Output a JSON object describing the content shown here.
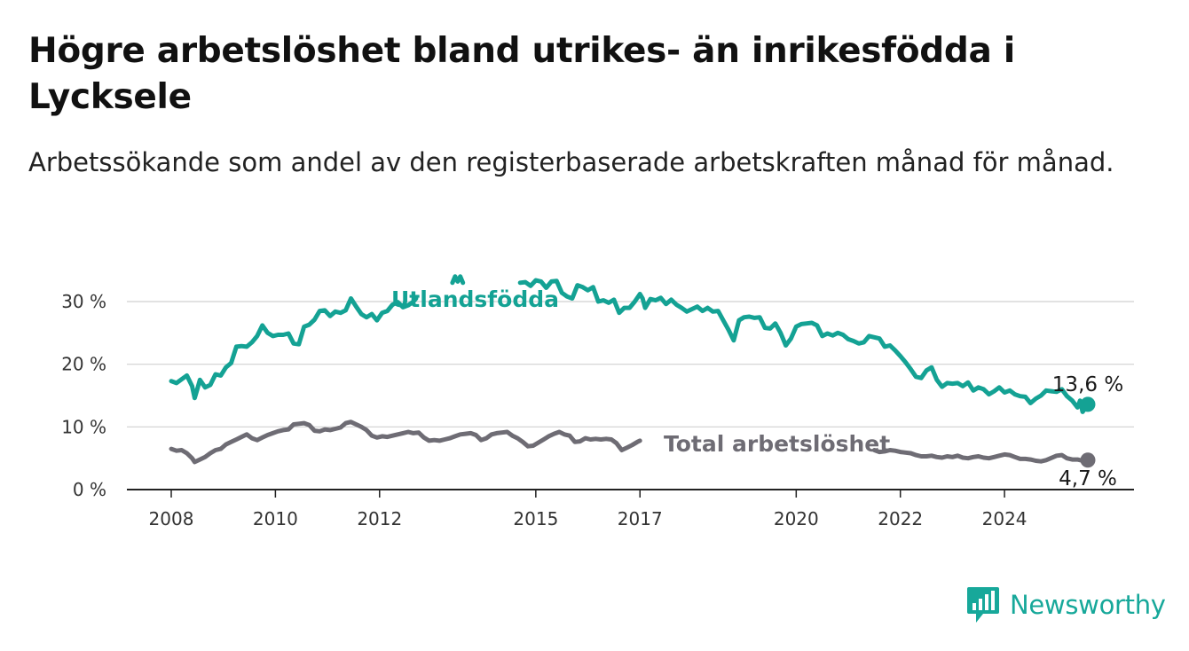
{
  "title": "Högre arbetslöshet bland utrikes- än inrikesfödda i Lycksele",
  "subtitle": "Arbetssökande som andel av den registerbaserade arbetskraften månad för månad.",
  "brand": {
    "name": "Newsworthy",
    "icon": "bar-chart-logo-icon",
    "color": "#17a89a"
  },
  "colors": {
    "utlandsfodda": "#14a294",
    "total": "#6e6c74",
    "grid": "#d0d0d0",
    "axis": "#222222"
  },
  "chart_data": {
    "type": "line",
    "x_unit": "year",
    "xlim": [
      2008,
      2025.6
    ],
    "ylim": [
      0,
      30
    ],
    "x_ticks": [
      2008,
      2010,
      2012,
      2015,
      2017,
      2020,
      2022,
      2024
    ],
    "y_ticks": [
      0,
      10,
      20,
      30
    ],
    "y_tick_labels": [
      "0 %",
      "10 %",
      "20 %",
      "30 %"
    ],
    "grid": "horizontal",
    "series": [
      {
        "name": "Utlandsfödda",
        "end_label": "13,6 %",
        "end_value": 13.6,
        "points": [
          [
            2008.0,
            17.3
          ],
          [
            2008.1,
            17.0
          ],
          [
            2008.2,
            17.6
          ],
          [
            2008.3,
            18.2
          ],
          [
            2008.4,
            16.5
          ],
          [
            2008.45,
            14.6
          ],
          [
            2008.5,
            16.0
          ],
          [
            2008.55,
            17.5
          ],
          [
            2008.65,
            16.3
          ],
          [
            2008.75,
            16.7
          ],
          [
            2008.85,
            18.4
          ],
          [
            2008.95,
            18.2
          ],
          [
            2009.05,
            19.5
          ],
          [
            2009.15,
            20.2
          ],
          [
            2009.25,
            22.8
          ],
          [
            2009.35,
            22.9
          ],
          [
            2009.45,
            22.8
          ],
          [
            2009.55,
            23.5
          ],
          [
            2009.65,
            24.5
          ],
          [
            2009.75,
            26.2
          ],
          [
            2009.85,
            25.0
          ],
          [
            2009.95,
            24.5
          ],
          [
            2010.05,
            24.7
          ],
          [
            2010.15,
            24.7
          ],
          [
            2010.25,
            24.9
          ],
          [
            2010.35,
            23.3
          ],
          [
            2010.45,
            23.2
          ],
          [
            2010.55,
            26.0
          ],
          [
            2010.65,
            26.3
          ],
          [
            2010.75,
            27.1
          ],
          [
            2010.85,
            28.5
          ],
          [
            2010.95,
            28.6
          ],
          [
            2011.05,
            27.7
          ],
          [
            2011.15,
            28.4
          ],
          [
            2011.25,
            28.2
          ],
          [
            2011.35,
            28.6
          ],
          [
            2011.45,
            30.5
          ],
          [
            2011.55,
            29.2
          ],
          [
            2011.65,
            28.0
          ],
          [
            2011.75,
            27.5
          ],
          [
            2011.85,
            28.0
          ],
          [
            2011.95,
            27.0
          ],
          [
            2012.05,
            28.2
          ],
          [
            2012.15,
            28.5
          ],
          [
            2012.25,
            29.5
          ],
          [
            2012.35,
            29.9
          ],
          [
            2012.45,
            29.1
          ],
          [
            2012.55,
            29.4
          ],
          [
            2012.65,
            30.0
          ],
          [
            2012.7,
            30.5
          ]
        ],
        "points_part2": [
          [
            2013.4,
            33.0
          ],
          [
            2013.45,
            34.0
          ],
          [
            2013.5,
            33.2
          ],
          [
            2013.55,
            34.0
          ],
          [
            2013.6,
            33.0
          ]
        ],
        "points_part3": [
          [
            2014.7,
            33.0
          ],
          [
            2014.8,
            33.1
          ],
          [
            2014.9,
            32.5
          ],
          [
            2015.0,
            33.4
          ],
          [
            2015.1,
            33.2
          ],
          [
            2015.2,
            32.2
          ],
          [
            2015.3,
            33.2
          ],
          [
            2015.4,
            33.3
          ],
          [
            2015.5,
            31.4
          ],
          [
            2015.6,
            30.8
          ],
          [
            2015.7,
            30.5
          ],
          [
            2015.8,
            32.6
          ],
          [
            2015.9,
            32.3
          ],
          [
            2016.0,
            31.8
          ],
          [
            2016.1,
            32.3
          ],
          [
            2016.2,
            30.0
          ],
          [
            2016.3,
            30.2
          ],
          [
            2016.4,
            29.8
          ],
          [
            2016.5,
            30.3
          ],
          [
            2016.6,
            28.2
          ],
          [
            2016.7,
            29.0
          ],
          [
            2016.8,
            29.0
          ],
          [
            2016.9,
            30.0
          ],
          [
            2017.0,
            31.2
          ],
          [
            2017.05,
            30.5
          ],
          [
            2017.1,
            29.0
          ],
          [
            2017.2,
            30.4
          ],
          [
            2017.3,
            30.2
          ],
          [
            2017.4,
            30.6
          ],
          [
            2017.5,
            29.6
          ],
          [
            2017.6,
            30.3
          ],
          [
            2017.7,
            29.5
          ],
          [
            2017.8,
            29.0
          ],
          [
            2017.9,
            28.4
          ],
          [
            2018.0,
            28.8
          ],
          [
            2018.1,
            29.2
          ],
          [
            2018.2,
            28.5
          ],
          [
            2018.3,
            29.0
          ],
          [
            2018.4,
            28.4
          ],
          [
            2018.5,
            28.5
          ],
          [
            2018.6,
            27.0
          ],
          [
            2018.7,
            25.5
          ],
          [
            2018.8,
            23.8
          ],
          [
            2018.9,
            27.0
          ],
          [
            2019.0,
            27.5
          ],
          [
            2019.1,
            27.6
          ],
          [
            2019.2,
            27.4
          ],
          [
            2019.3,
            27.5
          ],
          [
            2019.4,
            25.8
          ],
          [
            2019.5,
            25.7
          ],
          [
            2019.6,
            26.5
          ],
          [
            2019.7,
            25.0
          ],
          [
            2019.8,
            23.0
          ],
          [
            2019.9,
            24.1
          ],
          [
            2020.0,
            26.0
          ],
          [
            2020.1,
            26.4
          ],
          [
            2020.2,
            26.5
          ],
          [
            2020.3,
            26.6
          ],
          [
            2020.4,
            26.2
          ],
          [
            2020.5,
            24.5
          ],
          [
            2020.6,
            24.9
          ],
          [
            2020.7,
            24.6
          ],
          [
            2020.8,
            25.0
          ],
          [
            2020.9,
            24.7
          ],
          [
            2021.0,
            24.0
          ],
          [
            2021.1,
            23.7
          ],
          [
            2021.2,
            23.3
          ],
          [
            2021.3,
            23.5
          ],
          [
            2021.4,
            24.5
          ],
          [
            2021.5,
            24.3
          ],
          [
            2021.6,
            24.1
          ],
          [
            2021.7,
            22.8
          ],
          [
            2021.8,
            23.0
          ],
          [
            2021.9,
            22.2
          ],
          [
            2022.0,
            21.3
          ],
          [
            2022.1,
            20.3
          ],
          [
            2022.2,
            19.2
          ],
          [
            2022.3,
            18.0
          ],
          [
            2022.4,
            17.8
          ],
          [
            2022.5,
            19.0
          ],
          [
            2022.6,
            19.5
          ],
          [
            2022.7,
            17.5
          ],
          [
            2022.8,
            16.4
          ],
          [
            2022.9,
            17.0
          ],
          [
            2023.0,
            16.9
          ],
          [
            2023.1,
            17.0
          ],
          [
            2023.2,
            16.5
          ],
          [
            2023.3,
            17.1
          ],
          [
            2023.4,
            15.8
          ],
          [
            2023.5,
            16.3
          ],
          [
            2023.6,
            16.0
          ],
          [
            2023.7,
            15.2
          ],
          [
            2023.8,
            15.7
          ],
          [
            2023.9,
            16.3
          ],
          [
            2024.0,
            15.5
          ],
          [
            2024.1,
            15.8
          ],
          [
            2024.2,
            15.2
          ],
          [
            2024.3,
            14.9
          ],
          [
            2024.4,
            14.8
          ],
          [
            2024.5,
            13.8
          ],
          [
            2024.6,
            14.5
          ],
          [
            2024.7,
            15.0
          ],
          [
            2024.8,
            15.8
          ],
          [
            2024.9,
            15.7
          ],
          [
            2025.0,
            15.6
          ],
          [
            2025.1,
            16.0
          ],
          [
            2025.2,
            14.9
          ],
          [
            2025.3,
            14.2
          ],
          [
            2025.4,
            13.1
          ],
          [
            2025.45,
            14.2
          ],
          [
            2025.5,
            12.4
          ],
          [
            2025.6,
            13.6
          ]
        ]
      },
      {
        "name": "Total arbetslöshet",
        "end_label": "4,7 %",
        "end_value": 4.7,
        "points": [
          [
            2008.0,
            6.5
          ],
          [
            2008.1,
            6.2
          ],
          [
            2008.2,
            6.3
          ],
          [
            2008.3,
            5.8
          ],
          [
            2008.4,
            5.0
          ],
          [
            2008.45,
            4.4
          ],
          [
            2008.55,
            4.8
          ],
          [
            2008.65,
            5.2
          ],
          [
            2008.75,
            5.8
          ],
          [
            2008.85,
            6.3
          ],
          [
            2008.95,
            6.5
          ],
          [
            2009.05,
            7.2
          ],
          [
            2009.15,
            7.6
          ],
          [
            2009.25,
            8.0
          ],
          [
            2009.35,
            8.4
          ],
          [
            2009.45,
            8.8
          ],
          [
            2009.55,
            8.2
          ],
          [
            2009.65,
            7.9
          ],
          [
            2009.75,
            8.3
          ],
          [
            2009.85,
            8.7
          ],
          [
            2009.95,
            9.0
          ],
          [
            2010.05,
            9.3
          ],
          [
            2010.15,
            9.5
          ],
          [
            2010.25,
            9.6
          ],
          [
            2010.35,
            10.4
          ],
          [
            2010.45,
            10.5
          ],
          [
            2010.55,
            10.6
          ],
          [
            2010.65,
            10.3
          ],
          [
            2010.75,
            9.4
          ],
          [
            2010.85,
            9.3
          ],
          [
            2010.95,
            9.6
          ],
          [
            2011.05,
            9.5
          ],
          [
            2011.15,
            9.7
          ],
          [
            2011.25,
            9.9
          ],
          [
            2011.35,
            10.6
          ],
          [
            2011.45,
            10.8
          ],
          [
            2011.55,
            10.4
          ],
          [
            2011.65,
            10.0
          ],
          [
            2011.75,
            9.5
          ],
          [
            2011.85,
            8.6
          ],
          [
            2011.95,
            8.3
          ],
          [
            2012.05,
            8.5
          ],
          [
            2012.15,
            8.4
          ],
          [
            2012.25,
            8.6
          ],
          [
            2012.35,
            8.8
          ],
          [
            2012.45,
            9.0
          ],
          [
            2012.55,
            9.2
          ],
          [
            2012.65,
            9.0
          ],
          [
            2012.75,
            9.1
          ],
          [
            2012.85,
            8.3
          ],
          [
            2012.95,
            7.8
          ],
          [
            2013.05,
            7.9
          ],
          [
            2013.15,
            7.8
          ],
          [
            2013.25,
            8.0
          ],
          [
            2013.35,
            8.2
          ],
          [
            2013.45,
            8.5
          ],
          [
            2013.55,
            8.8
          ],
          [
            2013.65,
            8.9
          ],
          [
            2013.75,
            9.0
          ],
          [
            2013.85,
            8.7
          ],
          [
            2013.95,
            7.9
          ],
          [
            2014.05,
            8.2
          ],
          [
            2014.15,
            8.8
          ],
          [
            2014.25,
            9.0
          ],
          [
            2014.35,
            9.1
          ],
          [
            2014.45,
            9.2
          ],
          [
            2014.55,
            8.6
          ],
          [
            2014.65,
            8.2
          ],
          [
            2014.75,
            7.6
          ],
          [
            2014.85,
            6.9
          ],
          [
            2014.95,
            7.0
          ],
          [
            2015.05,
            7.5
          ],
          [
            2015.15,
            8.0
          ],
          [
            2015.25,
            8.5
          ],
          [
            2015.35,
            8.9
          ],
          [
            2015.45,
            9.2
          ],
          [
            2015.55,
            8.8
          ],
          [
            2015.65,
            8.6
          ],
          [
            2015.75,
            7.6
          ],
          [
            2015.85,
            7.7
          ],
          [
            2015.95,
            8.2
          ],
          [
            2016.05,
            8.0
          ],
          [
            2016.15,
            8.1
          ],
          [
            2016.25,
            8.0
          ],
          [
            2016.35,
            8.1
          ],
          [
            2016.45,
            8.0
          ],
          [
            2016.55,
            7.4
          ],
          [
            2016.65,
            6.3
          ],
          [
            2016.75,
            6.7
          ],
          [
            2016.85,
            7.1
          ],
          [
            2016.95,
            7.6
          ],
          [
            2017.0,
            7.8
          ]
        ],
        "points_part2": [
          [
            2021.5,
            6.3
          ],
          [
            2021.6,
            6.0
          ],
          [
            2021.7,
            6.1
          ],
          [
            2021.8,
            6.3
          ],
          [
            2021.9,
            6.2
          ],
          [
            2022.0,
            6.0
          ],
          [
            2022.1,
            5.9
          ],
          [
            2022.2,
            5.8
          ],
          [
            2022.3,
            5.5
          ],
          [
            2022.4,
            5.3
          ],
          [
            2022.5,
            5.3
          ],
          [
            2022.6,
            5.4
          ],
          [
            2022.7,
            5.2
          ],
          [
            2022.8,
            5.1
          ],
          [
            2022.9,
            5.3
          ],
          [
            2023.0,
            5.2
          ],
          [
            2023.1,
            5.4
          ],
          [
            2023.2,
            5.1
          ],
          [
            2023.3,
            5.0
          ],
          [
            2023.4,
            5.2
          ],
          [
            2023.5,
            5.3
          ],
          [
            2023.6,
            5.1
          ],
          [
            2023.7,
            5.0
          ],
          [
            2023.8,
            5.2
          ],
          [
            2023.9,
            5.4
          ],
          [
            2024.0,
            5.6
          ],
          [
            2024.1,
            5.5
          ],
          [
            2024.2,
            5.2
          ],
          [
            2024.3,
            4.9
          ],
          [
            2024.4,
            4.9
          ],
          [
            2024.5,
            4.8
          ],
          [
            2024.6,
            4.6
          ],
          [
            2024.7,
            4.5
          ],
          [
            2024.8,
            4.7
          ],
          [
            2025.0,
            5.4
          ],
          [
            2025.1,
            5.5
          ],
          [
            2025.2,
            5.0
          ],
          [
            2025.3,
            4.8
          ],
          [
            2025.4,
            4.8
          ],
          [
            2025.5,
            4.6
          ],
          [
            2025.6,
            4.7
          ]
        ]
      }
    ]
  }
}
